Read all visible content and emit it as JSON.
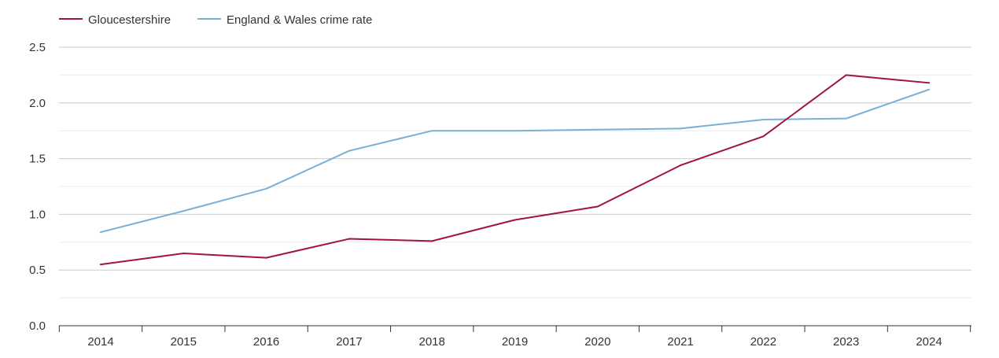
{
  "chart_data": {
    "type": "line",
    "title": "",
    "xlabel": "",
    "ylabel": "",
    "x": [
      "2014",
      "2015",
      "2016",
      "2017",
      "2018",
      "2019",
      "2020",
      "2021",
      "2022",
      "2023",
      "2024"
    ],
    "ylim": [
      0,
      2.5
    ],
    "y_ticks": [
      "0.0",
      "0.5",
      "1.0",
      "1.5",
      "2.0",
      "2.5"
    ],
    "grid": true,
    "legend_position": "top-left",
    "series": [
      {
        "name": "Gloucestershire",
        "color": "#a0153e",
        "values": [
          0.55,
          0.65,
          0.61,
          0.78,
          0.76,
          0.95,
          1.07,
          1.44,
          1.7,
          2.25,
          2.18
        ]
      },
      {
        "name": "England & Wales crime rate",
        "color": "#7bafd4",
        "values": [
          0.84,
          1.03,
          1.23,
          1.57,
          1.75,
          1.75,
          1.76,
          1.77,
          1.85,
          1.86,
          2.12
        ]
      }
    ]
  }
}
